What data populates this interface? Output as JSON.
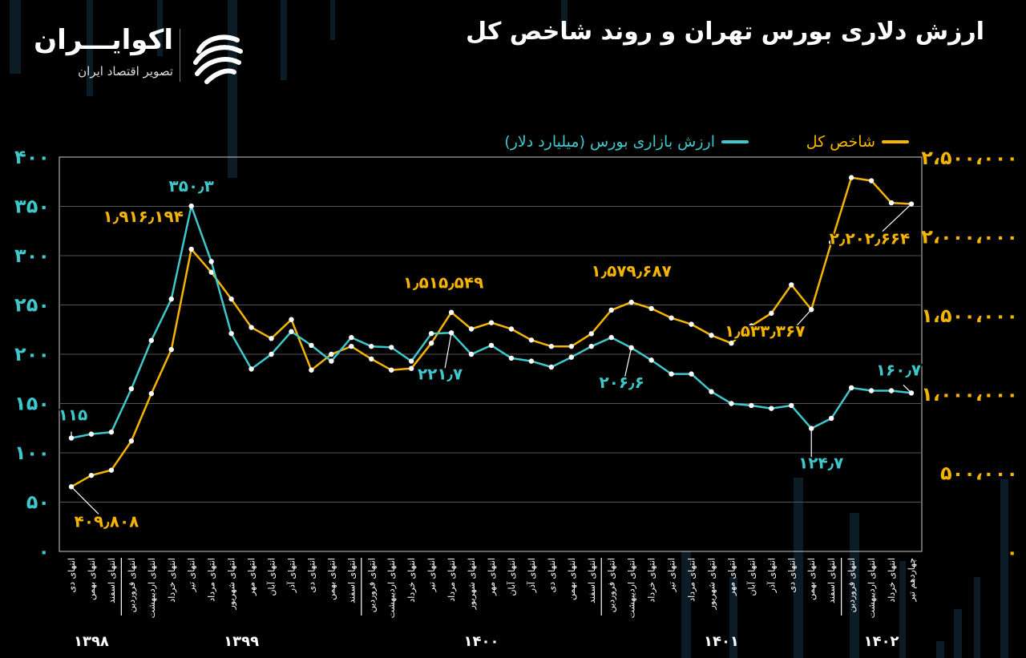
{
  "title": "ارزش دلاری بورس تهران و روند شاخص کل",
  "logo": {
    "name": "اکوایـــران",
    "tagline": "تصویر اقتصاد ایران"
  },
  "colors": {
    "background": "#000000",
    "index_line": "#f5b400",
    "value_line": "#3ec8cc",
    "grid": "#555555",
    "axis": "#cccccc"
  },
  "chart_data": {
    "type": "line",
    "legend": {
      "index_label": "شاخص کل",
      "value_label": "ارزش بازاری بورس (میلیارد دلار)",
      "placement": "top-right"
    },
    "categories": [
      "انتهای دی",
      "انتهای بهمن",
      "انتهای اسفند",
      "انتهای فروردین",
      "انتهای اردیبهشت",
      "انتهای خرداد",
      "انتهای تیر",
      "انتهای مرداد",
      "انتهای شهریور",
      "انتهای مهر",
      "انتهای آبان",
      "انتهای آذر",
      "انتهای دی",
      "انتهای بهمن",
      "انتهای اسفند",
      "انتهای فروردین",
      "انتهای اردیبهشت",
      "انتهای خرداد",
      "انتهای تیر",
      "انتهای مرداد",
      "انتهای شهریور",
      "انتهای مهر",
      "انتهای آبان",
      "انتهای آذر",
      "انتهای دی",
      "انتهای بهمن",
      "انتهای اسفند",
      "انتهای فروردین",
      "انتهای اردیبهشت",
      "انتهای خرداد",
      "انتهای تیر",
      "انتهای مرداد",
      "انتهای شهریور",
      "انتهای مهر",
      "انتهای آبان",
      "انتهای آذر",
      "انتهای دی",
      "انتهای بهمن",
      "انتهای اسفند",
      "انتهای فروردین",
      "انتهای اردیبهشت",
      "انتهای خرداد",
      "چهاردهم تیر"
    ],
    "year_labels": [
      {
        "text": "۱۳۹۸",
        "start": 0,
        "end": 2
      },
      {
        "text": "۱۳۹۹",
        "start": 3,
        "end": 14
      },
      {
        "text": "۱۴۰۰",
        "start": 15,
        "end": 26
      },
      {
        "text": "۱۴۰۱",
        "start": 27,
        "end": 38
      },
      {
        "text": "۱۴۰۲",
        "start": 39,
        "end": 42
      }
    ],
    "year_separators_after": [
      2,
      14,
      26,
      38
    ],
    "series": [
      {
        "name": "ارزش بازاری بورس (میلیارد دلار)",
        "axis": "left",
        "values": [
          115,
          119,
          121,
          165,
          214,
          256,
          350.3,
          294,
          221,
          185,
          200,
          223,
          209,
          193,
          217,
          208,
          207,
          193,
          221,
          221.7,
          200,
          209,
          196,
          193,
          187,
          197,
          208,
          217,
          206.6,
          194,
          180,
          180,
          162,
          150,
          148,
          145,
          148,
          124.7,
          135,
          166,
          163,
          163,
          160.7
        ]
      },
      {
        "name": "شاخص کل",
        "axis": "right",
        "values": [
          409808,
          482000,
          515000,
          700000,
          1000000,
          1280000,
          1916194,
          1770000,
          1600000,
          1420000,
          1350000,
          1470000,
          1150000,
          1250000,
          1300000,
          1220000,
          1150000,
          1160000,
          1320000,
          1515549,
          1410000,
          1450000,
          1410000,
          1340000,
          1300000,
          1300000,
          1380000,
          1530000,
          1579687,
          1540000,
          1480000,
          1440000,
          1370000,
          1320000,
          1430000,
          1510000,
          1690000,
          1533367,
          1960000,
          2370000,
          2350000,
          2210000,
          2202664
        ]
      }
    ],
    "y_left": {
      "ticks": [
        "۰",
        "۵۰",
        "۱۰۰",
        "۱۵۰",
        "۲۰۰",
        "۲۵۰",
        "۳۰۰",
        "۳۵۰",
        "۴۰۰"
      ],
      "range": [
        0,
        400
      ]
    },
    "y_right": {
      "ticks": [
        "۰",
        "۵۰۰،۰۰۰",
        "۱،۰۰۰،۰۰۰",
        "۱،۵۰۰،۰۰۰",
        "۲،۰۰۰،۰۰۰",
        "۲،۵۰۰،۰۰۰"
      ],
      "range": [
        0,
        2500000
      ]
    },
    "grid": true,
    "annotations": [
      {
        "series": "value",
        "index": 0,
        "text": "۱۱۵"
      },
      {
        "series": "value",
        "index": 6,
        "text": "۳۵۰٫۳"
      },
      {
        "series": "value",
        "index": 19,
        "text": "۲۲۱٫۷"
      },
      {
        "series": "value",
        "index": 28,
        "text": "۲۰۶٫۶"
      },
      {
        "series": "value",
        "index": 37,
        "text": "۱۲۴٫۷"
      },
      {
        "series": "value",
        "index": 42,
        "text": "۱۶۰٫۷"
      },
      {
        "series": "index",
        "index": 0,
        "text": "۴۰۹٫۸۰۸"
      },
      {
        "series": "index",
        "index": 6,
        "text": "۱٫۹۱۶٫۱۹۴"
      },
      {
        "series": "index",
        "index": 19,
        "text": "۱٫۵۱۵٫۵۴۹"
      },
      {
        "series": "index",
        "index": 28,
        "text": "۱٫۵۷۹٫۶۸۷"
      },
      {
        "series": "index",
        "index": 37,
        "text": "۱٫۵۳۳٫۳۶۷"
      },
      {
        "series": "index",
        "index": 42,
        "text": "۲٫۲۰۲٫۶۶۴"
      }
    ]
  }
}
